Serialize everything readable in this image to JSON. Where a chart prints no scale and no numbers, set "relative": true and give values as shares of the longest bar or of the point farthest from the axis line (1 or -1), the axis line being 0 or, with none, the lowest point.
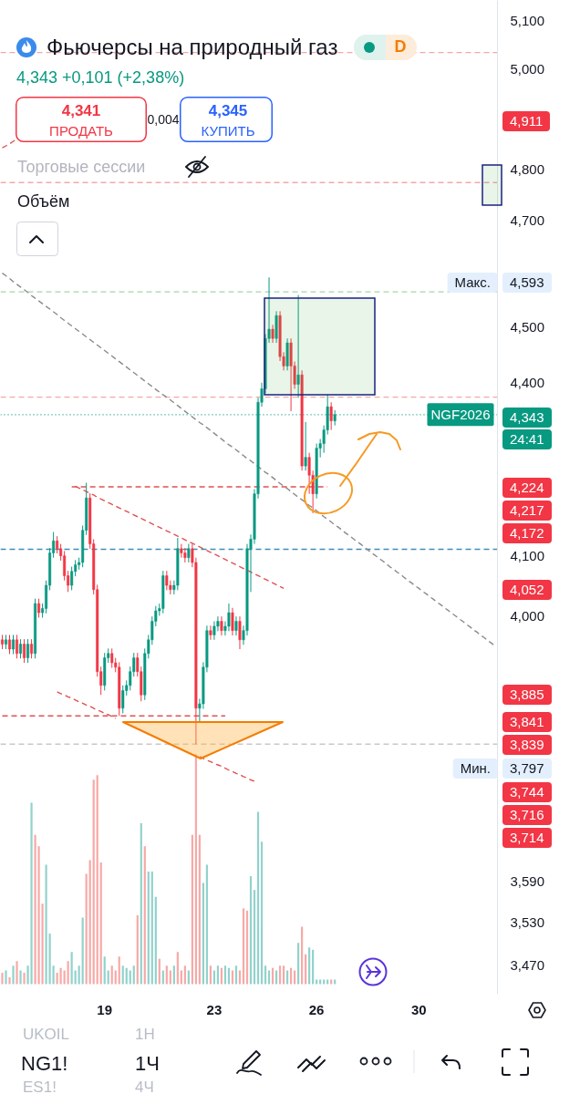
{
  "chart_data": [
    {
      "type": "candlestick",
      "title": "Фьючерсы на природный газ",
      "subtitle": "4,343 +0,101 (+2,38%)",
      "log": true,
      "ylim": [
        3.429,
        5.142
      ],
      "yticks": [
        {
          "value": 3.47,
          "label": "3,470"
        },
        {
          "value": 3.53,
          "label": "3,530"
        },
        {
          "value": 3.59,
          "label": "3,590"
        },
        {
          "value": 4.0,
          "label": "4,000"
        },
        {
          "value": 4.1,
          "label": "4,100"
        },
        {
          "value": 4.4,
          "label": "4,400"
        },
        {
          "value": 4.5,
          "label": "4,500"
        },
        {
          "value": 4.7,
          "label": "4,700"
        },
        {
          "value": 4.8,
          "label": "4,800"
        },
        {
          "value": 5.0,
          "label": "5,000"
        },
        {
          "value": 5.1,
          "label": "5,100"
        }
      ],
      "categories": [
        null,
        null,
        null,
        null,
        null,
        null,
        null,
        null,
        null,
        null,
        null,
        null,
        null,
        null,
        null,
        null,
        null,
        null,
        null,
        null,
        null,
        null,
        null,
        null,
        null,
        null,
        null,
        null,
        "19",
        null,
        null,
        null,
        null,
        null,
        null,
        null,
        null,
        null,
        null,
        null,
        null,
        null,
        null,
        null,
        null,
        null,
        null,
        null,
        null,
        null,
        null,
        null,
        null,
        null,
        null,
        null,
        null,
        null,
        "23",
        null,
        null,
        null,
        null,
        null,
        null,
        null,
        null,
        null,
        null,
        null,
        null,
        null,
        null,
        null,
        null,
        null,
        null,
        null,
        null,
        null,
        null,
        null,
        null,
        null,
        null,
        null,
        "26",
        null,
        null,
        null,
        null,
        null,
        null,
        null,
        null,
        null,
        null,
        null,
        null,
        null,
        null,
        null,
        null,
        null,
        null,
        null,
        null,
        null,
        null,
        null,
        null,
        null,
        null,
        null,
        "30",
        null,
        null,
        null,
        null,
        null,
        null,
        null,
        null,
        null,
        null,
        null,
        null,
        null,
        null,
        null,
        null,
        null,
        null,
        null,
        null,
        null
      ],
      "ohlc": [
        [
          3.962,
          3.97,
          3.947,
          3.955
        ],
        [
          3.955,
          3.97,
          3.947,
          3.962
        ],
        [
          3.962,
          3.97,
          3.939,
          3.947
        ],
        [
          3.947,
          3.97,
          3.939,
          3.962
        ],
        [
          3.962,
          3.97,
          3.932,
          3.94
        ],
        [
          3.94,
          3.963,
          3.932,
          3.955
        ],
        [
          3.955,
          3.963,
          3.925,
          3.933
        ],
        [
          3.933,
          3.963,
          3.925,
          3.955
        ],
        [
          3.955,
          3.963,
          3.932,
          3.94
        ],
        [
          3.94,
          4.029,
          3.932,
          4.021
        ],
        [
          4.021,
          4.029,
          3.998,
          4.006
        ],
        [
          4.006,
          4.021,
          3.998,
          4.013
        ],
        [
          4.013,
          4.059,
          4.005,
          4.051
        ],
        [
          4.051,
          4.113,
          4.043,
          4.105
        ],
        [
          4.105,
          4.14,
          4.097,
          4.125
        ],
        [
          4.125,
          4.133,
          4.104,
          4.112
        ],
        [
          4.112,
          4.12,
          4.092,
          4.1
        ],
        [
          4.1,
          4.108,
          4.059,
          4.067
        ],
        [
          4.067,
          4.075,
          4.04,
          4.051
        ],
        [
          4.051,
          4.082,
          4.043,
          4.074
        ],
        [
          4.074,
          4.093,
          4.066,
          4.085
        ],
        [
          4.085,
          4.097,
          4.077,
          4.089
        ],
        [
          4.089,
          4.151,
          4.081,
          4.143
        ],
        [
          4.143,
          4.224,
          4.135,
          4.198
        ],
        [
          4.198,
          4.206,
          4.112,
          4.12
        ],
        [
          4.12,
          4.128,
          4.036,
          4.044
        ],
        [
          4.044,
          4.052,
          3.903,
          3.911
        ],
        [
          3.911,
          3.919,
          3.874,
          3.889
        ],
        [
          3.889,
          3.941,
          3.881,
          3.933
        ],
        [
          3.933,
          3.948,
          3.925,
          3.94
        ],
        [
          3.94,
          3.948,
          3.917,
          3.925
        ],
        [
          3.925,
          3.933,
          3.91,
          3.918
        ],
        [
          3.918,
          3.926,
          3.841,
          3.853
        ],
        [
          3.853,
          3.889,
          3.845,
          3.881
        ],
        [
          3.881,
          3.897,
          3.873,
          3.889
        ],
        [
          3.889,
          3.919,
          3.881,
          3.911
        ],
        [
          3.911,
          3.941,
          3.903,
          3.933
        ],
        [
          3.933,
          3.941,
          3.903,
          3.911
        ],
        [
          3.911,
          3.919,
          3.864,
          3.874
        ],
        [
          3.874,
          3.948,
          3.866,
          3.94
        ],
        [
          3.94,
          3.97,
          3.932,
          3.962
        ],
        [
          3.962,
          4.0,
          3.954,
          3.992
        ],
        [
          3.992,
          4.017,
          3.984,
          4.009
        ],
        [
          4.009,
          4.021,
          4.001,
          4.013
        ],
        [
          4.013,
          4.075,
          4.005,
          4.067
        ],
        [
          4.067,
          4.075,
          4.043,
          4.051
        ],
        [
          4.051,
          4.059,
          4.036,
          4.044
        ],
        [
          4.044,
          4.059,
          4.036,
          4.051
        ],
        [
          4.051,
          4.13,
          4.043,
          4.112
        ],
        [
          4.112,
          4.12,
          4.097,
          4.105
        ],
        [
          4.105,
          4.113,
          4.089,
          4.097
        ],
        [
          4.097,
          4.12,
          4.089,
          4.112
        ],
        [
          4.112,
          4.12,
          4.081,
          4.089
        ],
        [
          4.089,
          4.097,
          3.797,
          3.853
        ],
        [
          3.853,
          3.868,
          3.83,
          3.86
        ],
        [
          3.86,
          3.926,
          3.852,
          3.918
        ],
        [
          3.918,
          3.985,
          3.91,
          3.977
        ],
        [
          3.977,
          3.985,
          3.962,
          3.97
        ],
        [
          3.97,
          3.992,
          3.962,
          3.984
        ],
        [
          3.984,
          4.0,
          3.976,
          3.992
        ],
        [
          3.992,
          4.0,
          3.969,
          3.977
        ],
        [
          3.977,
          3.992,
          3.969,
          3.984
        ],
        [
          3.984,
          4.021,
          3.976,
          4.006
        ],
        [
          4.006,
          4.014,
          3.969,
          3.977
        ],
        [
          3.977,
          4.0,
          3.969,
          3.992
        ],
        [
          3.992,
          4.0,
          3.947,
          3.962
        ],
        [
          3.962,
          3.985,
          3.954,
          3.977
        ],
        [
          3.977,
          4.12,
          3.969,
          4.112
        ],
        [
          4.112,
          4.136,
          4.04,
          4.128
        ],
        [
          4.128,
          4.213,
          4.12,
          4.205
        ],
        [
          4.205,
          4.373,
          4.197,
          4.365
        ],
        [
          4.365,
          4.4,
          4.357,
          4.389
        ],
        [
          4.389,
          4.488,
          4.381,
          4.48
        ],
        [
          4.48,
          4.593,
          4.472,
          4.497
        ],
        [
          4.497,
          4.505,
          4.472,
          4.48
        ],
        [
          4.48,
          4.53,
          4.472,
          4.522
        ],
        [
          4.522,
          4.53,
          4.439,
          4.447
        ],
        [
          4.447,
          4.455,
          4.422,
          4.43
        ],
        [
          4.43,
          4.48,
          4.422,
          4.472
        ],
        [
          4.472,
          4.48,
          4.349,
          4.43
        ],
        [
          4.43,
          4.438,
          4.389,
          4.397
        ],
        [
          4.397,
          4.56,
          4.373,
          4.414
        ],
        [
          4.414,
          4.422,
          4.245,
          4.253
        ],
        [
          4.253,
          4.33,
          4.245,
          4.268
        ],
        [
          4.268,
          4.276,
          4.205,
          4.237
        ],
        [
          4.237,
          4.245,
          4.172,
          4.205
        ],
        [
          4.205,
          4.292,
          4.197,
          4.284
        ],
        [
          4.284,
          4.3,
          4.268,
          4.292
        ],
        [
          4.292,
          4.324,
          4.276,
          4.316
        ],
        [
          4.316,
          4.378,
          4.308,
          4.357
        ],
        [
          4.357,
          4.365,
          4.316,
          4.332
        ],
        [
          4.332,
          4.351,
          4.324,
          4.343
        ],
        null,
        null,
        null,
        null,
        null,
        null,
        null,
        null,
        null,
        null,
        null,
        null,
        null,
        null,
        null,
        null,
        null,
        null,
        null,
        null,
        null,
        null,
        null,
        null,
        null,
        null,
        null,
        null,
        null,
        null,
        null,
        null,
        null,
        null,
        null,
        null,
        null,
        null,
        null,
        null,
        null,
        null,
        null,
        null
      ],
      "colors": [
        "#f23645",
        "#089981",
        "#f23645",
        "#089981",
        "#f23645",
        "#089981",
        "#f23645",
        "#089981",
        "#f23645",
        "#089981",
        "#f23645",
        "#089981",
        "#089981",
        "#089981",
        "#089981",
        "#f23645",
        "#f23645",
        "#f23645",
        "#f23645",
        "#089981",
        "#089981",
        "#089981",
        "#089981",
        "#089981",
        "#f23645",
        "#f23645",
        "#f23645",
        "#f23645",
        "#089981",
        "#089981",
        "#f23645",
        "#f23645",
        "#f23645",
        "#089981",
        "#089981",
        "#089981",
        "#089981",
        "#f23645",
        "#f23645",
        "#089981",
        "#089981",
        "#089981",
        "#089981",
        "#089981",
        "#089981",
        "#f23645",
        "#f23645",
        "#089981",
        "#089981",
        "#f23645",
        "#f23645",
        "#089981",
        "#f23645",
        "#f23645",
        "#089981",
        "#089981",
        "#089981",
        "#f23645",
        "#089981",
        "#089981",
        "#f23645",
        "#089981",
        "#089981",
        "#f23645",
        "#089981",
        "#f23645",
        "#089981",
        "#089981",
        "#089981",
        "#089981",
        "#089981",
        "#089981",
        "#089981",
        "#089981",
        "#f23645",
        "#089981",
        "#f23645",
        "#f23645",
        "#089981",
        "#f23645",
        "#f23645",
        "#089981",
        "#f23645",
        "#089981",
        "#f23645",
        "#f23645",
        "#089981",
        "#089981",
        "#089981",
        "#089981",
        "#f23645",
        "#089981",
        null,
        null,
        null,
        null,
        null,
        null,
        null,
        null,
        null,
        null,
        null,
        null,
        null,
        null,
        null,
        null,
        null,
        null,
        null,
        null,
        null,
        null,
        null,
        null,
        null,
        null,
        null,
        null,
        null,
        null,
        null,
        null,
        null,
        null,
        null,
        null,
        null,
        null,
        null,
        null,
        null,
        null,
        null,
        null
      ],
      "series": [
        {
          "type": "line",
          "color": "#8a8a8a",
          "line_style": "dashed",
          "values": [
            4.601,
            4.596,
            4.591,
            4.585,
            4.58,
            4.575,
            4.57,
            4.565,
            4.559,
            4.554,
            4.549,
            4.544,
            4.539,
            4.534,
            4.529,
            4.524,
            4.518,
            4.513,
            4.508,
            4.503,
            4.498,
            4.493,
            4.488,
            4.483,
            4.478,
            4.473,
            4.468,
            4.463,
            4.458,
            4.453,
            4.448,
            4.443,
            4.438,
            4.433,
            4.428,
            4.423,
            4.418,
            4.413,
            4.408,
            4.403,
            4.398,
            4.393,
            4.388,
            4.383,
            4.378,
            4.374,
            4.369,
            4.364,
            4.359,
            4.354,
            4.349,
            4.344,
            4.339,
            4.334,
            4.329,
            4.325,
            4.32,
            4.315,
            4.31,
            4.305,
            4.3,
            4.295,
            4.29,
            4.286,
            4.281,
            4.276,
            4.271,
            4.266,
            4.262,
            4.257,
            4.252,
            4.247,
            4.242,
            4.238,
            4.233,
            4.228,
            4.223,
            4.218,
            4.214,
            4.209,
            4.204,
            4.199,
            4.195,
            4.19,
            4.185,
            4.181,
            4.176,
            4.171,
            4.166,
            4.162,
            4.157,
            4.152,
            4.148,
            4.143,
            4.138,
            4.134,
            4.129,
            4.124,
            4.12,
            4.115,
            4.11,
            4.105,
            4.101,
            4.096,
            4.092,
            4.087,
            4.082,
            4.078,
            4.073,
            4.069,
            4.064,
            4.059,
            4.055,
            4.05,
            4.046,
            4.041,
            4.037,
            4.032,
            4.028,
            4.023,
            4.019,
            4.014,
            4.01,
            4.005,
            4.001,
            3.996,
            3.992,
            3.987,
            3.983,
            3.978,
            3.974,
            3.969,
            3.965,
            3.96,
            3.956,
            3.951
          ]
        },
        {
          "type": "line",
          "color": "#e05252",
          "line_style": "dashed",
          "values": [
            null,
            null,
            null,
            null,
            null,
            null,
            null,
            null,
            null,
            null,
            null,
            null,
            null,
            null,
            null,
            null,
            null,
            null,
            null,
            null,
            4.218,
            4.215,
            4.212,
            4.209,
            4.206,
            4.203,
            4.199,
            4.196,
            4.193,
            4.19,
            4.187,
            4.184,
            4.181,
            4.178,
            4.175,
            4.172,
            4.169,
            4.166,
            4.163,
            4.16,
            4.157,
            4.154,
            4.151,
            4.148,
            4.145,
            4.142,
            4.139,
            4.136,
            4.133,
            4.13,
            4.127,
            4.124,
            4.121,
            4.118,
            4.115,
            4.112,
            4.109,
            4.106,
            4.103,
            4.1,
            4.097,
            4.094,
            4.091,
            4.088,
            4.085,
            4.082,
            4.079,
            4.076,
            4.073,
            4.07,
            4.067,
            4.064,
            4.061,
            4.058,
            4.055,
            4.052,
            4.049,
            4.046,
            null,
            null,
            null,
            null,
            null,
            null,
            null,
            null,
            null,
            null,
            null,
            null,
            null,
            null,
            null,
            null,
            null,
            null,
            null,
            null,
            null,
            null,
            null,
            null,
            null,
            null,
            null,
            null,
            null,
            null,
            null,
            null,
            null,
            null,
            null,
            null,
            null,
            null,
            null,
            null,
            null,
            null,
            null,
            null,
            null,
            null,
            null,
            null,
            null,
            null,
            null,
            null,
            null,
            null,
            null,
            null,
            null,
            null
          ]
        },
        {
          "type": "line",
          "color": "#e05252",
          "line_style": "dashed",
          "values": [
            null,
            null,
            null,
            null,
            null,
            null,
            null,
            null,
            null,
            null,
            null,
            null,
            null,
            null,
            null,
            3.879,
            3.876,
            3.874,
            3.871,
            3.869,
            3.866,
            3.863,
            3.861,
            3.858,
            3.856,
            3.853,
            3.85,
            3.848,
            3.845,
            3.843,
            3.84,
            3.837,
            null,
            null,
            null,
            null,
            null,
            null,
            null,
            null,
            null,
            null,
            null,
            null,
            null,
            null,
            null,
            null,
            null,
            null,
            null,
            null,
            null,
            null,
            3.778,
            3.775,
            3.772,
            3.77,
            3.767,
            3.765,
            3.763,
            3.76,
            3.757,
            3.755,
            3.752,
            3.75,
            3.747,
            3.745,
            3.742,
            3.74,
            null,
            null,
            null,
            null,
            null,
            null,
            null,
            null,
            null,
            null,
            null,
            null,
            null,
            null,
            null,
            null,
            null,
            null,
            null,
            null,
            null,
            null,
            null,
            null,
            null,
            null,
            null,
            null,
            null,
            null,
            null,
            null,
            null,
            null,
            null,
            null,
            null,
            null,
            null,
            null,
            null,
            null,
            null,
            null,
            null,
            null,
            null,
            null,
            null,
            null,
            null,
            null,
            null,
            null,
            null,
            null,
            null,
            null,
            null,
            null,
            null,
            null,
            null,
            null,
            null,
            null
          ]
        },
        {
          "type": "line",
          "color": "#e05252",
          "line_style": "dashed",
          "values": [
            null,
            null,
            null,
            null,
            null,
            null,
            null,
            null,
            null,
            null,
            null,
            null,
            null,
            null,
            null,
            null,
            null,
            null,
            null,
            4.217,
            4.217,
            4.217,
            4.217,
            4.217,
            4.217,
            4.217,
            4.217,
            4.217,
            4.217,
            4.217,
            4.217,
            4.217,
            4.217,
            4.217,
            4.217,
            4.217,
            4.217,
            4.217,
            4.217,
            4.217,
            4.217,
            4.217,
            4.217,
            4.217,
            4.217,
            4.217,
            4.217,
            4.217,
            4.217,
            4.217,
            4.217,
            4.217,
            4.217,
            4.217,
            4.217,
            4.217,
            4.217,
            4.217,
            4.217,
            4.217,
            4.217,
            4.217,
            4.217,
            4.217,
            4.217,
            4.217,
            4.217,
            4.217,
            4.217,
            4.217,
            4.217,
            4.217,
            4.217,
            4.217,
            4.217,
            4.217,
            4.217,
            4.217,
            4.217,
            4.217,
            4.217,
            4.217,
            4.217,
            4.217,
            4.217,
            4.217,
            4.217,
            4.217,
            4.217,
            4.217,
            null,
            null,
            null,
            null,
            null,
            null,
            null,
            null,
            null,
            null,
            null,
            null,
            null,
            null,
            null,
            null,
            null,
            null,
            null,
            null,
            null,
            null,
            null,
            null,
            null,
            null,
            null,
            null,
            null,
            null,
            null,
            null,
            null,
            null,
            null,
            null,
            null,
            null,
            null,
            null,
            null,
            null,
            null,
            null,
            null,
            null
          ]
        },
        {
          "type": "line",
          "color": "#e05252",
          "line_style": "dashed",
          "values": [
            3.841,
            3.841,
            3.841,
            3.841,
            3.841,
            3.841,
            3.841,
            3.841,
            3.841,
            3.841,
            3.841,
            3.841,
            3.841,
            3.841,
            3.841,
            3.841,
            3.841,
            3.841,
            3.841,
            3.841,
            3.841,
            3.841,
            3.841,
            3.841,
            3.841,
            3.841,
            3.841,
            3.841,
            3.841,
            3.841,
            3.841,
            3.841,
            3.841,
            3.841,
            3.841,
            3.841,
            3.841,
            3.841,
            3.841,
            3.841,
            3.841,
            3.841,
            3.841,
            3.841,
            3.841,
            3.841,
            3.841,
            3.841,
            3.841,
            3.841,
            3.841,
            3.841,
            3.841,
            3.841,
            3.841,
            3.841,
            3.841,
            3.841,
            3.841,
            3.841,
            3.841,
            3.841,
            null,
            null,
            null,
            null,
            null,
            null,
            null,
            null,
            null,
            null,
            null,
            null,
            null,
            null,
            null,
            null,
            null,
            null,
            null,
            null,
            null,
            null,
            null,
            null,
            null,
            null,
            null,
            null,
            null,
            null,
            null,
            null,
            null,
            null,
            null,
            null,
            null,
            null,
            null,
            null,
            null,
            null,
            null,
            null,
            null,
            null,
            null,
            null,
            null,
            null,
            null,
            null,
            null,
            null,
            null,
            null,
            null,
            null,
            null,
            null,
            null,
            null,
            null,
            null,
            null,
            null,
            null,
            null,
            null,
            null,
            null,
            null,
            null,
            null
          ]
        },
        {
          "type": "line",
          "color": "#e05252",
          "line_style": "dashed",
          "values": [
            4.842,
            4.846,
            4.85,
            4.855,
            4.859,
            null,
            null,
            null,
            null,
            null,
            null,
            null,
            null,
            null,
            null,
            null,
            null,
            null,
            null,
            null,
            null,
            null,
            null,
            null,
            null,
            null,
            null,
            null,
            null,
            null,
            null,
            null,
            null,
            null,
            null,
            null,
            null,
            null,
            null,
            null,
            null,
            null,
            null,
            null,
            null,
            null,
            null,
            null,
            null,
            null,
            null,
            null,
            null,
            null,
            null,
            null,
            null,
            null,
            null,
            null,
            null,
            null,
            null,
            null,
            null,
            null,
            null,
            null,
            null,
            null,
            null,
            null,
            null,
            null,
            null,
            null,
            null,
            null,
            null,
            null,
            null,
            null,
            null,
            null,
            null,
            null,
            null,
            null,
            null,
            null,
            null,
            null,
            null,
            null,
            null,
            null,
            null,
            null,
            null,
            null,
            null,
            null,
            null,
            null,
            null,
            null,
            null,
            null,
            null,
            null,
            null,
            null,
            null,
            null,
            null,
            null,
            null,
            null,
            null,
            null,
            null,
            null,
            null,
            null,
            null,
            null,
            null,
            null,
            null,
            null,
            null,
            null,
            null,
            null,
            null,
            null
          ]
        }
      ],
      "ref_lines": [
        {
          "axis": "y",
          "value": 5.034,
          "color": "#f4a7a7",
          "line_style": "dashed"
        },
        {
          "axis": "y",
          "value": 4.774,
          "color": "#f4a7a7",
          "line_style": "dashed"
        },
        {
          "axis": "y",
          "value": 4.566,
          "color": "#a5d6a7",
          "line_style": "dashed"
        },
        {
          "axis": "y",
          "value": 4.374,
          "color": "#f4a7a7",
          "line_style": "dashed"
        },
        {
          "axis": "y",
          "value": 4.343,
          "label": "NGF2026",
          "color": "#089981",
          "line_style": "dotted"
        },
        {
          "axis": "y",
          "value": 4.111,
          "color": "#3d8eb9",
          "line_style": "dashed"
        },
        {
          "axis": "y",
          "value": 3.797,
          "color": "#c8c8c8",
          "line_style": "dashed"
        }
      ],
      "annotations": [
        "D",
        "4,341",
        "ПРОДАТЬ",
        "0,004",
        "4,345",
        "КУПИТЬ",
        "Торговые сессии",
        "Объём",
        "4,911",
        "Макс.",
        "4,593",
        "4,343",
        "24:41",
        "4,224",
        "4,217",
        "4,172",
        "4,052",
        "3,885",
        "3,841",
        "3,839",
        "Мин.",
        "3,797",
        "3,744",
        "3,716",
        "3,714",
        "UKOIL",
        "1H",
        "NG1!",
        "1Ч",
        "ES1!",
        "4Ч"
      ]
    },
    {
      "type": "bar",
      "relative": true,
      "tick_labels": false,
      "categories": [
        null,
        null,
        null,
        null,
        null,
        null,
        null,
        null,
        null,
        null,
        null,
        null,
        null,
        null,
        null,
        null,
        null,
        null,
        null,
        null,
        null,
        null,
        null,
        null,
        null,
        null,
        null,
        null,
        "19",
        null,
        null,
        null,
        null,
        null,
        null,
        null,
        null,
        null,
        null,
        null,
        null,
        null,
        null,
        null,
        null,
        null,
        null,
        null,
        null,
        null,
        null,
        null,
        null,
        null,
        null,
        null,
        null,
        null,
        "23",
        null,
        null,
        null,
        null,
        null,
        null,
        null,
        null,
        null,
        null,
        null,
        null,
        null,
        null,
        null,
        null,
        null,
        null,
        null,
        null,
        null,
        null,
        null,
        null,
        null,
        null,
        null,
        "26",
        null,
        null,
        null,
        null,
        null,
        null,
        null,
        null,
        null,
        null,
        null,
        null,
        null,
        null,
        null,
        null,
        null,
        null,
        null,
        null,
        null,
        null,
        null,
        null,
        null,
        null,
        null,
        "30",
        null,
        null,
        null,
        null,
        null,
        null,
        null,
        null,
        null,
        null,
        null,
        null,
        null,
        null,
        null,
        null,
        null,
        null,
        null,
        null,
        null
      ],
      "values": [
        0.05,
        0.06,
        0.03,
        0.08,
        0.1,
        0.06,
        0.05,
        0.08,
        0.79,
        0.65,
        0.6,
        0.35,
        0.52,
        0.22,
        0.08,
        0.05,
        0.07,
        0.06,
        0.1,
        0.14,
        0.06,
        0.08,
        0.29,
        0.48,
        0.54,
        0.89,
        0.91,
        0.53,
        0.12,
        0.06,
        0.08,
        0.06,
        0.12,
        0.08,
        0.07,
        0.06,
        0.08,
        0.3,
        0.7,
        0.6,
        0.49,
        0.49,
        0.38,
        0.11,
        0.06,
        0.08,
        0.06,
        0.08,
        0.14,
        0.06,
        0.08,
        0.06,
        0.65,
        1,
        0.65,
        0.44,
        0.52,
        0.08,
        0.06,
        0.08,
        0.07,
        0.08,
        0.07,
        0.06,
        0.08,
        0.06,
        0.33,
        0.32,
        0.47,
        0.41,
        0.75,
        0.62,
        0.08,
        0.06,
        0.07,
        0.06,
        0.08,
        0.08,
        0.06,
        0.07,
        0.06,
        0.18,
        0.25,
        0.13,
        0.16,
        0.15,
        0.02,
        0.02,
        0.02,
        0.02,
        0.02,
        0.02,
        null,
        null,
        null,
        null,
        null,
        null,
        null,
        null,
        null,
        null,
        null,
        null,
        null,
        null,
        null,
        null,
        null,
        null,
        null,
        null,
        null,
        null,
        null,
        null,
        null,
        null,
        null,
        null,
        null,
        null,
        null,
        null,
        null,
        null,
        null,
        null,
        null,
        null,
        null,
        null,
        null,
        null,
        null,
        null
      ],
      "colors": [
        "#f7a9a7",
        "#92d2cc",
        "#f7a9a7",
        "#92d2cc",
        "#f7a9a7",
        "#92d2cc",
        "#f7a9a7",
        "#92d2cc",
        "#92d2cc",
        "#f7a9a7",
        "#f7a9a7",
        "#f7a9a7",
        "#92d2cc",
        "#92d2cc",
        "#92d2cc",
        "#f7a9a7",
        "#f7a9a7",
        "#f7a9a7",
        "#f7a9a7",
        "#92d2cc",
        "#92d2cc",
        "#92d2cc",
        "#92d2cc",
        "#f7a9a7",
        "#f7a9a7",
        "#f7a9a7",
        "#f7a9a7",
        "#f7a9a7",
        "#92d2cc",
        "#92d2cc",
        "#f7a9a7",
        "#f7a9a7",
        "#f7a9a7",
        "#92d2cc",
        "#92d2cc",
        "#92d2cc",
        "#92d2cc",
        "#f7a9a7",
        "#92d2cc",
        "#f7a9a7",
        "#92d2cc",
        "#92d2cc",
        "#92d2cc",
        "#f7a9a7",
        "#92d2cc",
        "#f7a9a7",
        "#f7a9a7",
        "#92d2cc",
        "#f7a9a7",
        "#f7a9a7",
        "#f7a9a7",
        "#92d2cc",
        "#f7a9a7",
        "#f7a9a7",
        "#f7a9a7",
        "#92d2cc",
        "#92d2cc",
        "#f7a9a7",
        "#92d2cc",
        "#92d2cc",
        "#f7a9a7",
        "#92d2cc",
        "#92d2cc",
        "#f7a9a7",
        "#92d2cc",
        "#f7a9a7",
        "#f7a9a7",
        "#f7a9a7",
        "#92d2cc",
        "#92d2cc",
        "#92d2cc",
        "#92d2cc",
        "#92d2cc",
        "#92d2cc",
        "#f7a9a7",
        "#92d2cc",
        "#f7a9a7",
        "#f7a9a7",
        "#92d2cc",
        "#f7a9a7",
        "#f7a9a7",
        "#92d2cc",
        "#f7a9a7",
        "#f7a9a7",
        "#92d2cc",
        "#92d2cc",
        "#92d2cc",
        "#92d2cc",
        "#92d2cc",
        "#92d2cc",
        "#f7a9a7",
        "#92d2cc",
        null,
        null,
        null,
        null,
        null,
        null,
        null,
        null,
        null,
        null,
        null,
        null,
        null,
        null,
        null,
        null,
        null,
        null,
        null,
        null,
        null,
        null,
        null,
        null,
        null,
        null,
        null,
        null,
        null,
        null,
        null,
        null,
        null,
        null,
        null,
        null,
        null,
        null,
        null,
        null,
        null,
        null,
        null,
        null
      ]
    }
  ]
}
